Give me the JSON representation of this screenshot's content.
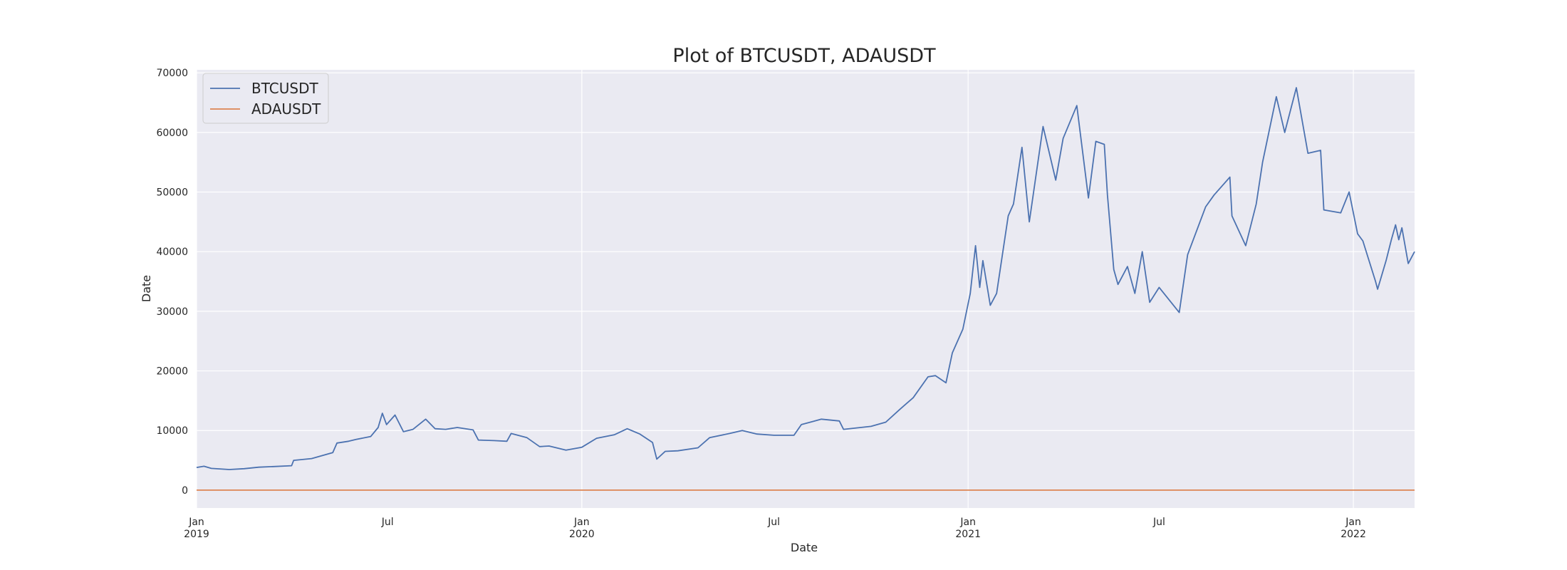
{
  "chart_data": {
    "type": "line",
    "title": "Plot of BTCUSDT, ADAUSDT",
    "xlabel": "Date",
    "ylabel": "Date",
    "xlim": [
      "2019-01-01",
      "2022-02-28"
    ],
    "ylim": [
      -3000,
      70500
    ],
    "grid": true,
    "legend_position": "upper-left",
    "y_ticks": [
      0,
      10000,
      20000,
      30000,
      40000,
      50000,
      60000,
      70000
    ],
    "x_ticks": [
      {
        "date": "2019-01-01",
        "label": "Jan",
        "sublabel": "2019",
        "major": true
      },
      {
        "date": "2019-07-01",
        "label": "Jul",
        "sublabel": "",
        "major": false
      },
      {
        "date": "2020-01-01",
        "label": "Jan",
        "sublabel": "2020",
        "major": true
      },
      {
        "date": "2020-07-01",
        "label": "Jul",
        "sublabel": "",
        "major": false
      },
      {
        "date": "2021-01-01",
        "label": "Jan",
        "sublabel": "2021",
        "major": true
      },
      {
        "date": "2021-07-01",
        "label": "Jul",
        "sublabel": "",
        "major": false
      },
      {
        "date": "2022-01-01",
        "label": "Jan",
        "sublabel": "2022",
        "major": true
      }
    ],
    "series": [
      {
        "name": "BTCUSDT",
        "color": "#4c72b0",
        "points": [
          [
            "2019-01-01",
            3800
          ],
          [
            "2019-01-08",
            4000
          ],
          [
            "2019-01-15",
            3650
          ],
          [
            "2019-02-01",
            3450
          ],
          [
            "2019-02-15",
            3600
          ],
          [
            "2019-03-01",
            3850
          ],
          [
            "2019-03-15",
            3950
          ],
          [
            "2019-04-01",
            4100
          ],
          [
            "2019-04-03",
            5000
          ],
          [
            "2019-04-20",
            5300
          ],
          [
            "2019-05-10",
            6300
          ],
          [
            "2019-05-14",
            7900
          ],
          [
            "2019-05-25",
            8200
          ],
          [
            "2019-06-01",
            8500
          ],
          [
            "2019-06-15",
            9000
          ],
          [
            "2019-06-22",
            10500
          ],
          [
            "2019-06-26",
            12900
          ],
          [
            "2019-06-30",
            11000
          ],
          [
            "2019-07-08",
            12600
          ],
          [
            "2019-07-16",
            9800
          ],
          [
            "2019-07-25",
            10200
          ],
          [
            "2019-08-06",
            11900
          ],
          [
            "2019-08-15",
            10300
          ],
          [
            "2019-08-25",
            10200
          ],
          [
            "2019-09-05",
            10500
          ],
          [
            "2019-09-20",
            10100
          ],
          [
            "2019-09-25",
            8400
          ],
          [
            "2019-10-10",
            8300
          ],
          [
            "2019-10-22",
            8200
          ],
          [
            "2019-10-26",
            9500
          ],
          [
            "2019-11-10",
            8800
          ],
          [
            "2019-11-22",
            7300
          ],
          [
            "2019-12-01",
            7400
          ],
          [
            "2019-12-17",
            6700
          ],
          [
            "2020-01-01",
            7200
          ],
          [
            "2020-01-15",
            8700
          ],
          [
            "2020-02-01",
            9300
          ],
          [
            "2020-02-13",
            10300
          ],
          [
            "2020-02-25",
            9400
          ],
          [
            "2020-03-08",
            8000
          ],
          [
            "2020-03-12",
            5200
          ],
          [
            "2020-03-20",
            6500
          ],
          [
            "2020-04-01",
            6600
          ],
          [
            "2020-04-20",
            7100
          ],
          [
            "2020-05-01",
            8800
          ],
          [
            "2020-05-20",
            9500
          ],
          [
            "2020-06-01",
            10000
          ],
          [
            "2020-06-15",
            9400
          ],
          [
            "2020-07-01",
            9200
          ],
          [
            "2020-07-20",
            9200
          ],
          [
            "2020-07-27",
            11000
          ],
          [
            "2020-08-15",
            11900
          ],
          [
            "2020-09-01",
            11600
          ],
          [
            "2020-09-05",
            10200
          ],
          [
            "2020-10-01",
            10700
          ],
          [
            "2020-10-15",
            11400
          ],
          [
            "2020-10-28",
            13500
          ],
          [
            "2020-11-10",
            15500
          ],
          [
            "2020-11-24",
            19000
          ],
          [
            "2020-12-01",
            19200
          ],
          [
            "2020-12-11",
            18000
          ],
          [
            "2020-12-17",
            23000
          ],
          [
            "2020-12-27",
            27000
          ],
          [
            "2021-01-03",
            33000
          ],
          [
            "2021-01-08",
            41000
          ],
          [
            "2021-01-12",
            34000
          ],
          [
            "2021-01-15",
            38500
          ],
          [
            "2021-01-22",
            31000
          ],
          [
            "2021-01-28",
            33000
          ],
          [
            "2021-02-08",
            46000
          ],
          [
            "2021-02-13",
            48000
          ],
          [
            "2021-02-21",
            57500
          ],
          [
            "2021-02-28",
            45000
          ],
          [
            "2021-03-13",
            61000
          ],
          [
            "2021-03-25",
            52000
          ],
          [
            "2021-04-01",
            59000
          ],
          [
            "2021-04-14",
            64500
          ],
          [
            "2021-04-25",
            49000
          ],
          [
            "2021-05-02",
            58500
          ],
          [
            "2021-05-10",
            58000
          ],
          [
            "2021-05-13",
            49500
          ],
          [
            "2021-05-19",
            37000
          ],
          [
            "2021-05-23",
            34500
          ],
          [
            "2021-06-01",
            37500
          ],
          [
            "2021-06-08",
            33000
          ],
          [
            "2021-06-15",
            40000
          ],
          [
            "2021-06-22",
            31500
          ],
          [
            "2021-07-01",
            34000
          ],
          [
            "2021-07-20",
            29800
          ],
          [
            "2021-07-28",
            39500
          ],
          [
            "2021-08-14",
            47500
          ],
          [
            "2021-08-22",
            49500
          ],
          [
            "2021-09-06",
            52500
          ],
          [
            "2021-09-08",
            46000
          ],
          [
            "2021-09-21",
            41000
          ],
          [
            "2021-10-01",
            48000
          ],
          [
            "2021-10-07",
            55000
          ],
          [
            "2021-10-20",
            66000
          ],
          [
            "2021-10-28",
            60000
          ],
          [
            "2021-11-08",
            67500
          ],
          [
            "2021-11-19",
            56500
          ],
          [
            "2021-12-01",
            57000
          ],
          [
            "2021-12-04",
            47000
          ],
          [
            "2021-12-20",
            46500
          ],
          [
            "2021-12-28",
            50000
          ],
          [
            "2022-01-05",
            43000
          ],
          [
            "2022-01-10",
            41800
          ],
          [
            "2022-01-22",
            35000
          ],
          [
            "2022-01-24",
            33700
          ],
          [
            "2022-02-01",
            38500
          ],
          [
            "2022-02-06",
            42000
          ],
          [
            "2022-02-10",
            44500
          ],
          [
            "2022-02-13",
            42000
          ],
          [
            "2022-02-16",
            44000
          ],
          [
            "2022-02-22",
            38000
          ],
          [
            "2022-02-28",
            40000
          ]
        ]
      },
      {
        "name": "ADAUSDT",
        "color": "#dd8452",
        "points": [
          [
            "2019-01-01",
            0.05
          ],
          [
            "2022-02-28",
            0.95
          ]
        ]
      }
    ]
  }
}
